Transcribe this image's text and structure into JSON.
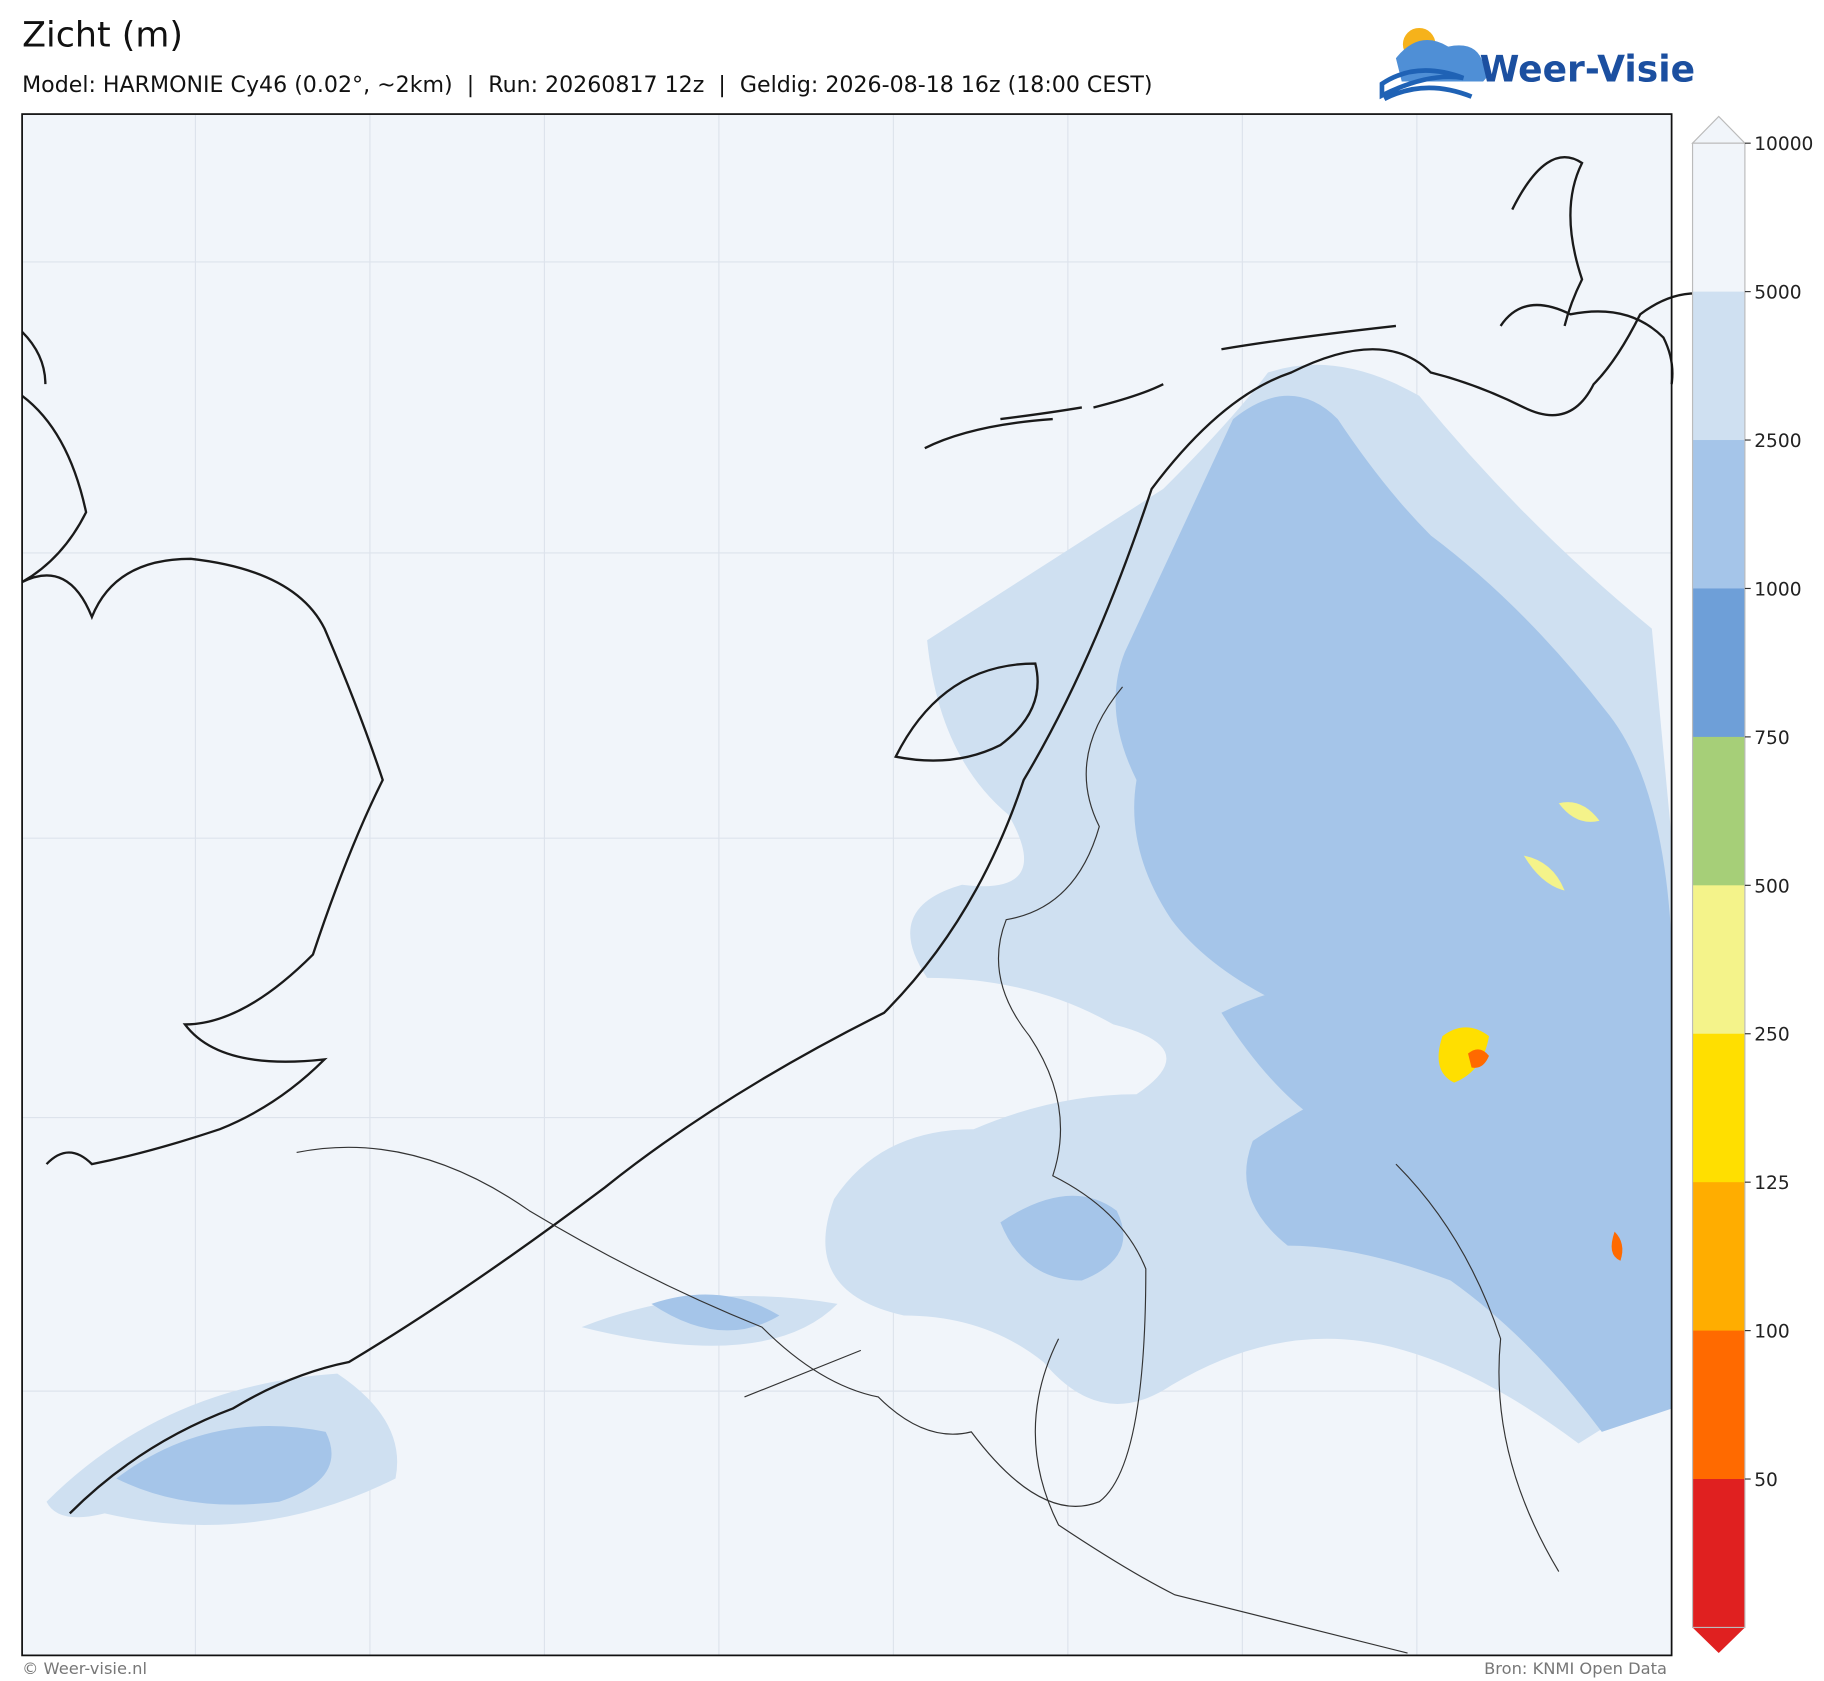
{
  "header": {
    "title": "Zicht (m)",
    "subtitle": "Model: HARMONIE Cy46 (0.02°, ~2km)  |  Run: 20260817 12z  |  Geldig: 2026-08-18 16z (18:00 CEST)",
    "logo": "Weer-Visie"
  },
  "colorbar": {
    "ticks": [
      10000,
      5000,
      2500,
      1000,
      750,
      500,
      250,
      125,
      100,
      50
    ],
    "colors": [
      "#f1f5fa",
      "#cfe0f1",
      "#a5c5e9",
      "#6e9fd8",
      "#a6cf78",
      "#f4f38a",
      "#ffdf00",
      "#ffad00",
      "#ff6a00",
      "#e02020"
    ]
  },
  "footer": {
    "left": "© Weer-visie.nl",
    "right": "Bron: KNMI Open Data"
  }
}
